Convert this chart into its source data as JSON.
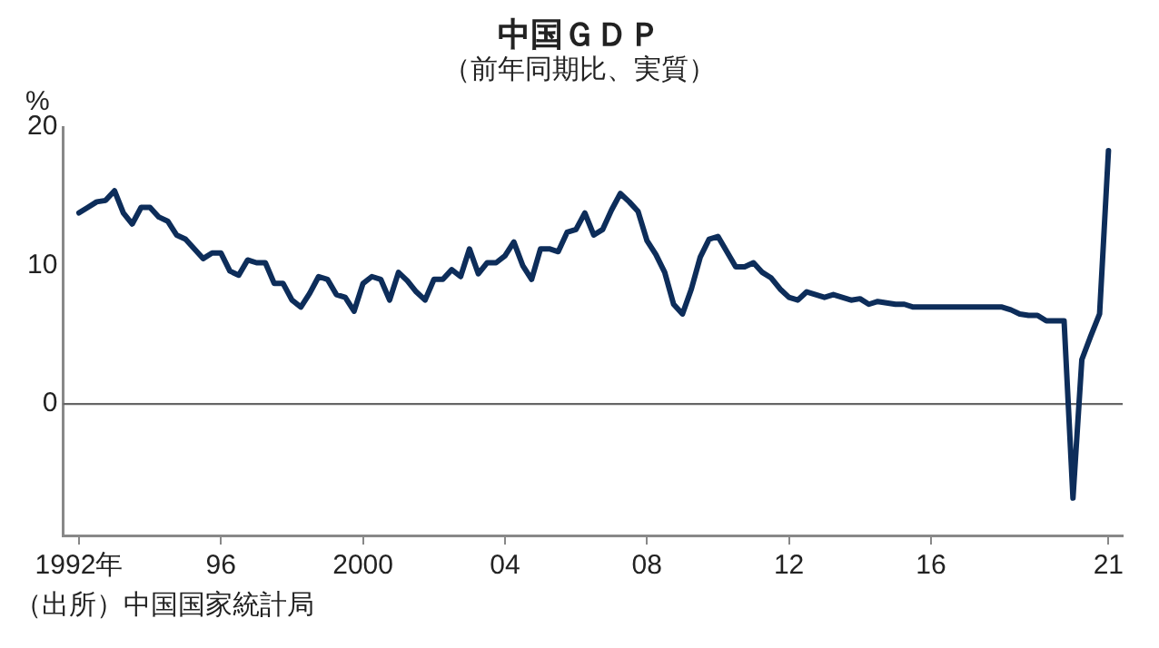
{
  "chart_data": {
    "type": "line",
    "title": "中国ＧＤＰ",
    "subtitle": "（前年同期比、実質）",
    "ylabel": "%",
    "annotations": [
      "（出所）中国国家統計局"
    ],
    "x": [
      1992,
      1992.25,
      1992.5,
      1992.75,
      1993,
      1993.25,
      1993.5,
      1993.75,
      1994,
      1994.25,
      1994.5,
      1994.75,
      1995,
      1995.25,
      1995.5,
      1995.75,
      1996,
      1996.25,
      1996.5,
      1996.75,
      1997,
      1997.25,
      1997.5,
      1997.75,
      1998,
      1998.25,
      1998.5,
      1998.75,
      1999,
      1999.25,
      1999.5,
      1999.75,
      2000,
      2000.25,
      2000.5,
      2000.75,
      2001,
      2001.25,
      2001.5,
      2001.75,
      2002,
      2002.25,
      2002.5,
      2002.75,
      2003,
      2003.25,
      2003.5,
      2003.75,
      2004,
      2004.25,
      2004.5,
      2004.75,
      2005,
      2005.25,
      2005.5,
      2005.75,
      2006,
      2006.25,
      2006.5,
      2006.75,
      2007,
      2007.25,
      2007.5,
      2007.75,
      2008,
      2008.25,
      2008.5,
      2008.75,
      2009,
      2009.25,
      2009.5,
      2009.75,
      2010,
      2010.25,
      2010.5,
      2010.75,
      2011,
      2011.25,
      2011.5,
      2011.75,
      2012,
      2012.25,
      2012.5,
      2012.75,
      2013,
      2013.25,
      2013.5,
      2013.75,
      2014,
      2014.25,
      2014.5,
      2014.75,
      2015,
      2015.25,
      2015.5,
      2015.75,
      2016,
      2016.25,
      2016.5,
      2016.75,
      2017,
      2017.25,
      2017.5,
      2017.75,
      2018,
      2018.25,
      2018.5,
      2018.75,
      2019,
      2019.25,
      2019.5,
      2019.75,
      2020,
      2020.25,
      2020.5,
      2020.75,
      2021
    ],
    "series": [
      {
        "color": "#0d2d5a",
        "values": [
          13.8,
          14.2,
          14.6,
          14.7,
          15.4,
          13.8,
          13.0,
          14.2,
          14.2,
          13.5,
          13.2,
          12.2,
          11.9,
          11.2,
          10.5,
          10.9,
          10.9,
          9.6,
          9.3,
          10.4,
          10.2,
          10.2,
          8.7,
          8.7,
          7.5,
          7.0,
          8.0,
          9.2,
          9.0,
          7.9,
          7.7,
          6.7,
          8.7,
          9.2,
          9.0,
          7.5,
          9.5,
          8.9,
          8.1,
          7.5,
          9.0,
          9.0,
          9.7,
          9.2,
          11.2,
          9.4,
          10.2,
          10.2,
          10.7,
          11.7,
          10.0,
          9.0,
          11.2,
          11.2,
          11.0,
          12.4,
          12.6,
          13.8,
          12.2,
          12.6,
          14.0,
          15.2,
          14.6,
          13.9,
          11.8,
          10.8,
          9.5,
          7.2,
          6.5,
          8.3,
          10.6,
          11.9,
          12.1,
          11.0,
          9.9,
          9.9,
          10.2,
          9.5,
          9.1,
          8.3,
          7.7,
          7.5,
          8.1,
          7.9,
          7.7,
          7.9,
          7.7,
          7.5,
          7.6,
          7.2,
          7.4,
          7.3,
          7.2,
          7.2,
          7.0,
          7.0,
          7.0,
          7.0,
          7.0,
          7.0,
          7.0,
          7.0,
          7.0,
          7.0,
          7.0,
          6.8,
          6.5,
          6.4,
          6.4,
          6.0,
          6.0,
          6.0,
          -6.8,
          3.2,
          4.9,
          6.5,
          18.3
        ]
      }
    ],
    "xlim": [
      1991.55,
      2021.4
    ],
    "xticks": [
      {
        "value": 1992,
        "label": "1992年"
      },
      {
        "value": 1996,
        "label": "96"
      },
      {
        "value": 2000,
        "label": "2000"
      },
      {
        "value": 2004,
        "label": "04"
      },
      {
        "value": 2008,
        "label": "08"
      },
      {
        "value": 2012,
        "label": "12"
      },
      {
        "value": 2016,
        "label": "16"
      },
      {
        "value": 2021,
        "label": "21"
      }
    ],
    "ylim": [
      -9.5,
      20
    ],
    "yticks": [
      0,
      10,
      20
    ],
    "ref_lines": [
      {
        "axis": "y",
        "value": 0,
        "color": "#666666"
      }
    ],
    "grid": false,
    "legend": false,
    "marker": "none",
    "line_style": "solid"
  }
}
